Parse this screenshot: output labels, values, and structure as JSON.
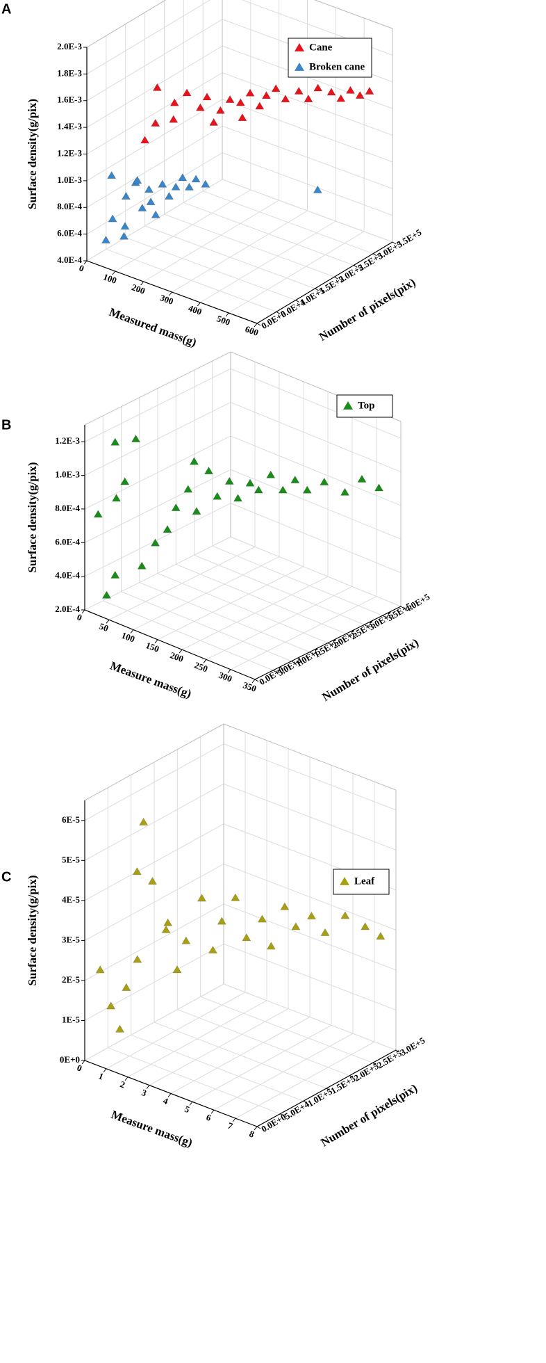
{
  "chart_data": [
    {
      "type": "scatter3d",
      "label": "A",
      "xlabel": "Measured mass(g)",
      "ylabel": "Number of pixels(pix)",
      "zlabel": "Surface density(g/pix)",
      "xlim": [
        0,
        600
      ],
      "ylim": [
        0,
        350000
      ],
      "zlim": [
        0.0004,
        0.002
      ],
      "xticks": [
        0,
        100,
        200,
        300,
        400,
        500,
        600
      ],
      "yticks": [
        {
          "value": 0,
          "label": "0.0E+0"
        },
        {
          "value": 50000,
          "label": "5.0E+4"
        },
        {
          "value": 100000,
          "label": "1.0E+5"
        },
        {
          "value": 150000,
          "label": "1.5E+5"
        },
        {
          "value": 200000,
          "label": "2.0E+5"
        },
        {
          "value": 250000,
          "label": "2.5E+5"
        },
        {
          "value": 300000,
          "label": "3.0E+5"
        },
        {
          "value": 350000,
          "label": "3.5E+5"
        }
      ],
      "zticks": [
        {
          "value": 0.0004,
          "label": "4.0E-4"
        },
        {
          "value": 0.0006,
          "label": "6.0E-4"
        },
        {
          "value": 0.0008,
          "label": "8.0E-4"
        },
        {
          "value": 0.001,
          "label": "1.0E-3"
        },
        {
          "value": 0.0012,
          "label": "1.2E-3"
        },
        {
          "value": 0.0014,
          "label": "1.4E-3"
        },
        {
          "value": 0.0016,
          "label": "1.6E-3"
        },
        {
          "value": 0.0018,
          "label": "1.8E-3"
        },
        {
          "value": 0.002,
          "label": "2.0E-3"
        }
      ],
      "grid": true,
      "legend": "upper right",
      "series": [
        {
          "name": "Cane",
          "color": "#e8141b",
          "x": [
            150,
            160,
            180,
            200,
            210,
            230,
            250,
            260,
            280,
            300,
            310,
            330,
            350,
            360,
            380,
            400,
            420,
            440,
            460,
            480,
            500,
            520,
            540,
            560,
            330,
            270
          ],
          "y": [
            40000,
            60000,
            50000,
            80000,
            70000,
            90000,
            110000,
            120000,
            140000,
            150000,
            170000,
            180000,
            190000,
            200000,
            210000,
            220000,
            240000,
            250000,
            260000,
            280000,
            290000,
            300000,
            310000,
            320000,
            160000,
            130000
          ],
          "z": [
            0.00135,
            0.00145,
            0.00175,
            0.0016,
            0.0015,
            0.00168,
            0.00155,
            0.00162,
            0.0015,
            0.00158,
            0.00153,
            0.0016,
            0.0015,
            0.00157,
            0.00162,
            0.00154,
            0.00158,
            0.00152,
            0.0016,
            0.00155,
            0.0015,
            0.00156,
            0.00152,
            0.00155,
            0.00145,
            0.00142
          ]
        },
        {
          "name": "Broken cane",
          "color": "#3a86c8",
          "x": [
            40,
            50,
            60,
            70,
            80,
            90,
            100,
            110,
            120,
            130,
            140,
            150,
            160,
            170,
            180,
            200,
            90,
            110,
            130,
            500
          ],
          "y": [
            20000,
            30000,
            20000,
            50000,
            40000,
            60000,
            70000,
            80000,
            90000,
            100000,
            110000,
            120000,
            130000,
            140000,
            150000,
            160000,
            30000,
            50000,
            70000,
            230000
          ],
          "z": [
            0.00055,
            0.0007,
            0.00105,
            0.00085,
            0.00065,
            0.00095,
            0.00075,
            0.00088,
            0.00068,
            0.0009,
            0.0008,
            0.00086,
            0.00092,
            0.00084,
            0.00089,
            0.00085,
            0.0006,
            0.001,
            0.00082,
            0.00092
          ]
        }
      ]
    },
    {
      "type": "scatter3d",
      "label": "B",
      "xlabel": "Measure mass(g)",
      "ylabel": "Number of pixels(pix)",
      "zlabel": "Surface density(g/pix)",
      "xlim": [
        0,
        350
      ],
      "ylim": [
        0,
        400000
      ],
      "zlim": [
        0.0002,
        0.0013
      ],
      "xticks": [
        0,
        50,
        100,
        150,
        200,
        250,
        300,
        350
      ],
      "yticks": [
        {
          "value": 0,
          "label": "0.0E+0"
        },
        {
          "value": 50000,
          "label": "5.0E+4"
        },
        {
          "value": 100000,
          "label": "1.0E+5"
        },
        {
          "value": 150000,
          "label": "1.5E+5"
        },
        {
          "value": 200000,
          "label": "2.0E+5"
        },
        {
          "value": 250000,
          "label": "2.5E+5"
        },
        {
          "value": 300000,
          "label": "3.0E+5"
        },
        {
          "value": 350000,
          "label": "3.5E+5"
        },
        {
          "value": 400000,
          "label": "4.0E+5"
        }
      ],
      "zticks": [
        {
          "value": 0.0002,
          "label": "2.0E-4"
        },
        {
          "value": 0.0004,
          "label": "4.0E-4"
        },
        {
          "value": 0.0006,
          "label": "6.0E-4"
        },
        {
          "value": 0.0008,
          "label": "8.0E-4"
        },
        {
          "value": 0.001,
          "label": "1.0E-3"
        },
        {
          "value": 0.0012,
          "label": "1.2E-3"
        }
      ],
      "grid": true,
      "legend": "upper right",
      "series": [
        {
          "name": "Top",
          "color": "#1a8c1a",
          "x": [
            30,
            40,
            20,
            50,
            60,
            55,
            90,
            80,
            100,
            110,
            120,
            130,
            140,
            150,
            160,
            170,
            180,
            190,
            200,
            210,
            220,
            230,
            240,
            260,
            280,
            300,
            320,
            150
          ],
          "y": [
            20000,
            30000,
            10000,
            20000,
            30000,
            10000,
            20000,
            50000,
            60000,
            80000,
            90000,
            110000,
            120000,
            140000,
            150000,
            170000,
            180000,
            200000,
            210000,
            230000,
            250000,
            270000,
            290000,
            310000,
            340000,
            360000,
            380000,
            100000
          ],
          "z": [
            0.0003,
            0.00042,
            0.00078,
            0.0009,
            0.001,
            0.00125,
            0.0013,
            0.0005,
            0.00065,
            0.00072,
            0.00085,
            0.00095,
            0.00082,
            0.00105,
            0.0009,
            0.00098,
            0.00088,
            0.00096,
            0.00092,
            0.001,
            0.0009,
            0.00095,
            0.00088,
            0.00093,
            0.00086,
            0.00094,
            0.00089,
            0.00115
          ]
        }
      ]
    },
    {
      "type": "scatter3d",
      "label": "C",
      "xlabel": "Measure mass(g)",
      "ylabel": "Number of pixels(pix)",
      "zlabel": "Surface density(g/pix)",
      "xlim": [
        0,
        8
      ],
      "ylim": [
        0,
        300000
      ],
      "zlim": [
        0,
        6.5e-05
      ],
      "xticks": [
        0,
        1,
        2,
        3,
        4,
        5,
        6,
        7,
        8
      ],
      "yticks": [
        {
          "value": 0,
          "label": "0.0E+0"
        },
        {
          "value": 50000,
          "label": "5.0E+4"
        },
        {
          "value": 100000,
          "label": "1.0E+5"
        },
        {
          "value": 150000,
          "label": "1.5E+5"
        },
        {
          "value": 200000,
          "label": "2.0E+5"
        },
        {
          "value": 250000,
          "label": "2.5E+5"
        },
        {
          "value": 300000,
          "label": "3.0E+5"
        }
      ],
      "zticks": [
        {
          "value": 0,
          "label": "0E+0"
        },
        {
          "value": 1e-05,
          "label": "1E-5"
        },
        {
          "value": 2e-05,
          "label": "2E-5"
        },
        {
          "value": 3e-05,
          "label": "3E-5"
        },
        {
          "value": 4e-05,
          "label": "4E-5"
        },
        {
          "value": 5e-05,
          "label": "5E-5"
        },
        {
          "value": 6e-05,
          "label": "6E-5"
        }
      ],
      "grid": true,
      "legend": "upper right",
      "series": [
        {
          "name": "Leaf",
          "color": "#a8a012",
          "x": [
            0.5,
            1,
            1.2,
            1.5,
            1.8,
            2,
            2.5,
            2.3,
            2.7,
            3,
            3.2,
            3.5,
            3.8,
            4,
            4.2,
            4.5,
            4.8,
            5,
            5.2,
            5.5,
            5.8,
            6,
            6.5,
            7,
            7.5,
            3
          ],
          "y": [
            10000,
            10000,
            20000,
            20000,
            30000,
            20000,
            30000,
            20000,
            50000,
            60000,
            70000,
            90000,
            100000,
            110000,
            130000,
            140000,
            160000,
            170000,
            190000,
            200000,
            220000,
            240000,
            260000,
            280000,
            290000,
            40000
          ],
          "z": [
            2.3e-05,
            1.5e-05,
            9e-06,
            2e-05,
            2.7e-05,
            5e-05,
            4.8e-05,
            6.3e-05,
            3.5e-05,
            2.5e-05,
            3.2e-05,
            4.2e-05,
            2.9e-05,
            3.6e-05,
            4.1e-05,
            3.1e-05,
            3.5e-05,
            2.8e-05,
            3.7e-05,
            3.2e-05,
            3.4e-05,
            2.9e-05,
            3.3e-05,
            3e-05,
            2.8e-05,
            3.8e-05
          ]
        }
      ]
    }
  ]
}
